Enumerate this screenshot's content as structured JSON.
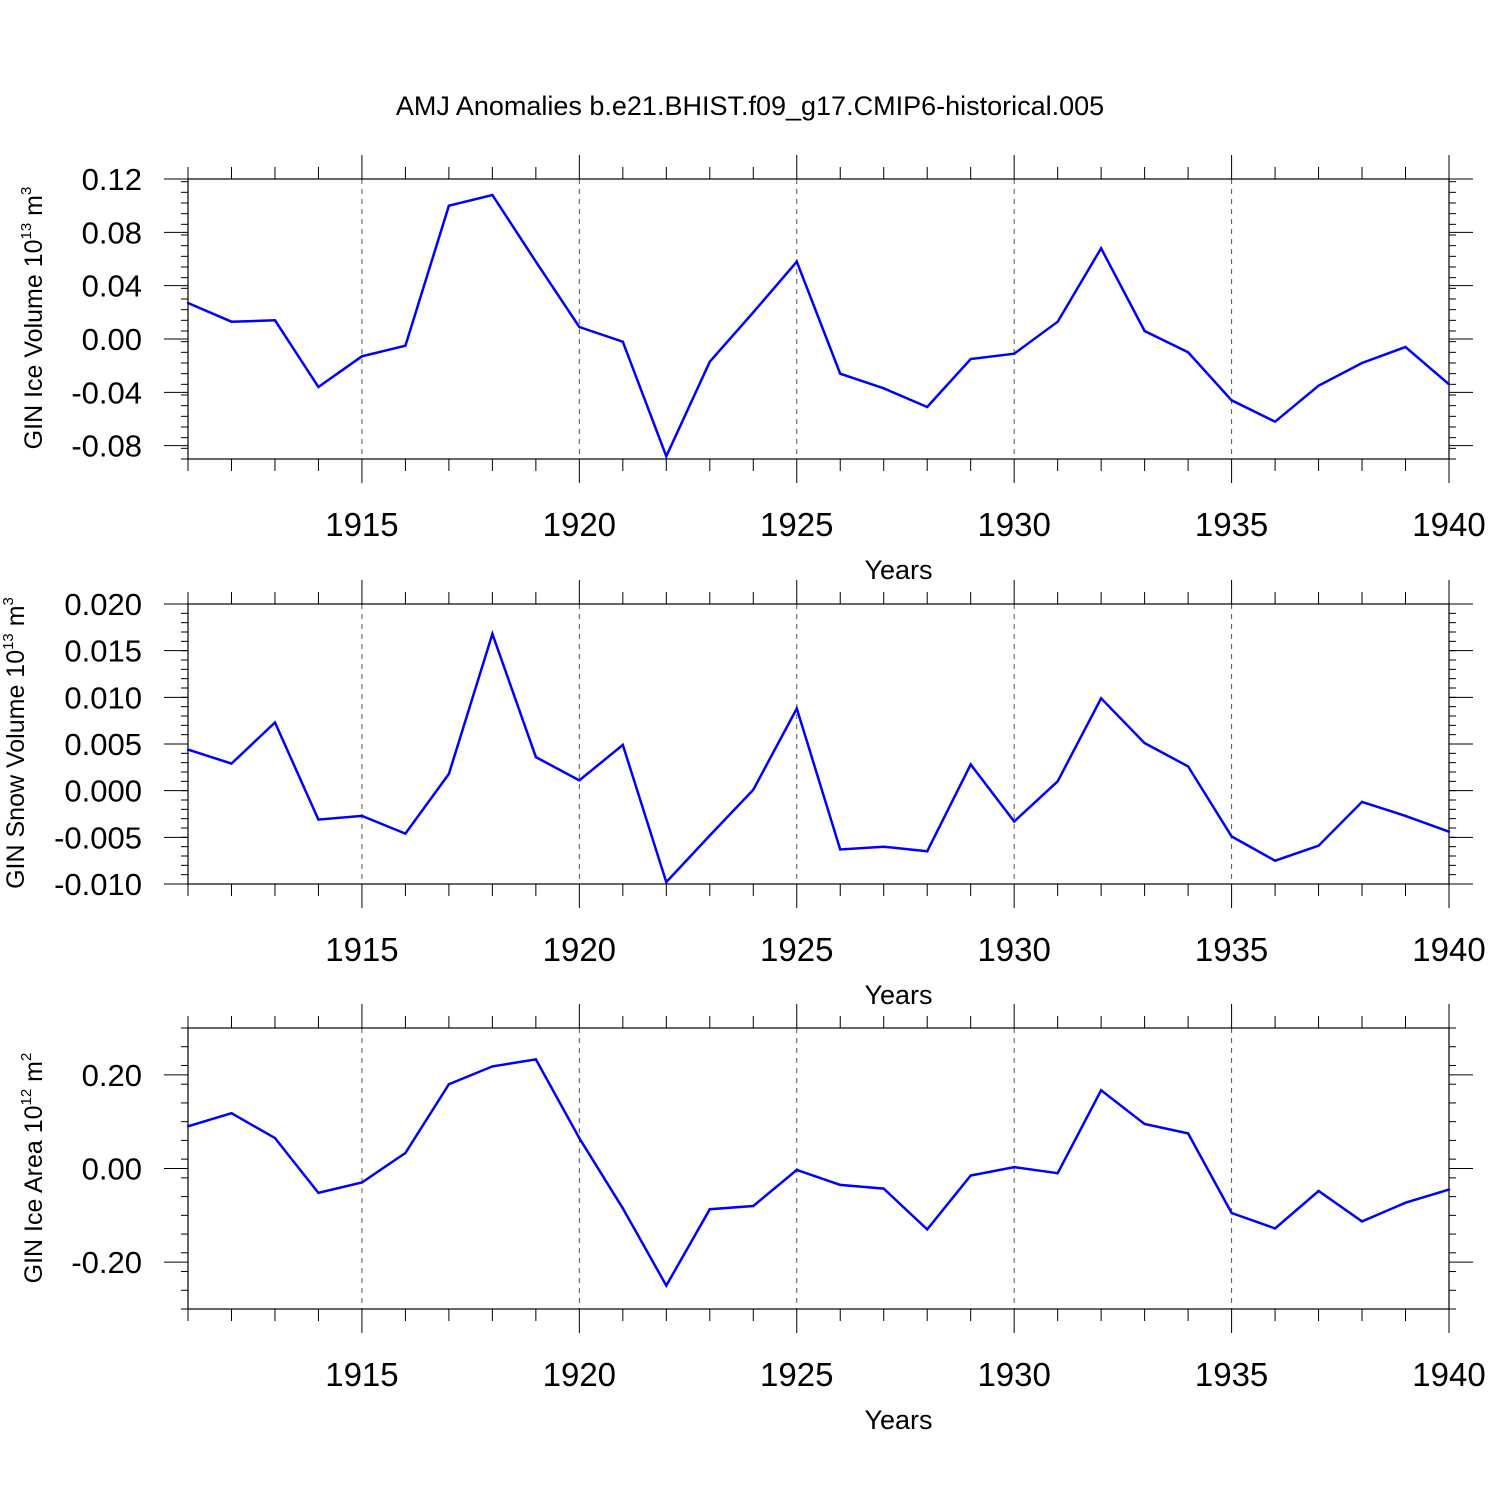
{
  "chart_data": {
    "title": "AMJ Anomalies b.e21.BHIST.f09_g17.CMIP6-historical.005",
    "x": [
      1911,
      1912,
      1913,
      1914,
      1915,
      1916,
      1917,
      1918,
      1919,
      1920,
      1921,
      1922,
      1923,
      1924,
      1925,
      1926,
      1927,
      1928,
      1929,
      1930,
      1931,
      1932,
      1933,
      1934,
      1935,
      1936,
      1937,
      1938,
      1939,
      1940
    ],
    "xlim": [
      1911,
      1940
    ],
    "xticks": [
      1915,
      1920,
      1925,
      1930,
      1935,
      1940
    ],
    "panels": [
      {
        "type": "line",
        "ylabel_main": "GIN Ice Volume 10",
        "ylabel_exp": "13",
        "ylabel_unit": "m",
        "ylabel_unit_exp": "3",
        "xlabel": "Years",
        "ylim": [
          -0.09,
          0.12
        ],
        "yticks": [
          "0.12",
          "0.08",
          "0.04",
          "0.00",
          "-0.04",
          "-0.08"
        ],
        "color": "#0000ff",
        "values": [
          0.027,
          0.013,
          0.014,
          -0.036,
          -0.013,
          -0.005,
          0.1,
          0.108,
          0.058,
          0.009,
          -0.002,
          -0.088,
          -0.017,
          0.02,
          0.058,
          -0.026,
          -0.037,
          -0.051,
          -0.015,
          -0.011,
          0.013,
          0.068,
          0.006,
          -0.01,
          -0.046,
          -0.062,
          -0.035,
          -0.018,
          -0.006,
          -0.034
        ]
      },
      {
        "type": "line",
        "ylabel_main": "GIN Snow Volume 10",
        "ylabel_exp": "13",
        "ylabel_unit": "m",
        "ylabel_unit_exp": "3",
        "xlabel": "Years",
        "ylim": [
          -0.01,
          0.02
        ],
        "yticks": [
          "0.020",
          "0.015",
          "0.010",
          "0.005",
          "0.000",
          "-0.005",
          "-0.010"
        ],
        "color": "#0000ff",
        "values": [
          0.0044,
          0.0029,
          0.0073,
          -0.0031,
          -0.0027,
          -0.0046,
          0.0018,
          0.0168,
          0.0036,
          0.0011,
          0.0049,
          -0.0098,
          -0.0048,
          0.0001,
          0.0088,
          -0.0063,
          -0.006,
          -0.0065,
          0.0028,
          -0.0033,
          0.001,
          0.0099,
          0.0051,
          0.0026,
          -0.0049,
          -0.0075,
          -0.0059,
          -0.0012,
          -0.0027,
          -0.0044
        ]
      },
      {
        "type": "line",
        "ylabel_main": "GIN Ice Area 10",
        "ylabel_exp": "12",
        "ylabel_unit": "m",
        "ylabel_unit_exp": "2",
        "xlabel": "Years",
        "ylim": [
          -0.3,
          0.3
        ],
        "yticks": [
          "0.20",
          "0.00",
          "-0.20"
        ],
        "color": "#0000ff",
        "values": [
          0.09,
          0.118,
          0.065,
          -0.052,
          -0.03,
          0.033,
          0.18,
          0.218,
          0.233,
          0.065,
          -0.085,
          -0.25,
          -0.087,
          -0.08,
          -0.003,
          -0.035,
          -0.043,
          -0.13,
          -0.015,
          0.003,
          -0.01,
          0.167,
          0.095,
          0.075,
          -0.095,
          -0.128,
          -0.048,
          -0.113,
          -0.073,
          -0.045
        ]
      }
    ]
  }
}
